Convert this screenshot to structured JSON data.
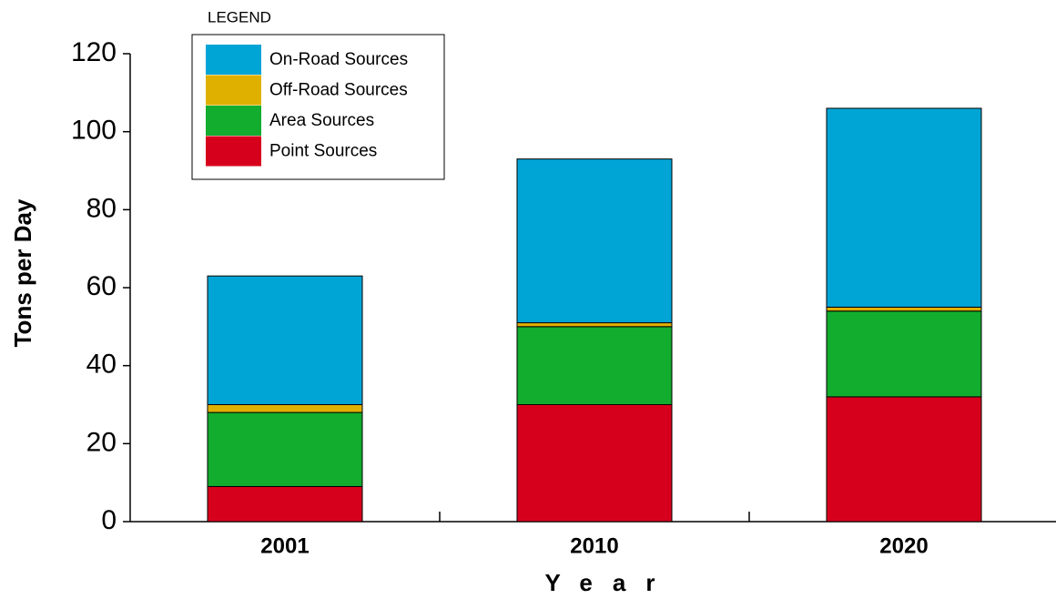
{
  "chart_data": {
    "type": "stacked-bar",
    "y_label": "Tons per Day",
    "x_label": "Year",
    "legend_title": "LEGEND",
    "categories": [
      "2001",
      "2010",
      "2020"
    ],
    "series": [
      {
        "name": "Point Sources",
        "color": "#d7001c",
        "values": [
          9,
          30,
          32
        ]
      },
      {
        "name": "Area Sources",
        "color": "#12ac2e",
        "values": [
          19,
          20,
          22
        ]
      },
      {
        "name": "Off-Road Sources",
        "color": "#e0b000",
        "values": [
          2,
          1,
          1
        ]
      },
      {
        "name": "On-Road Sources",
        "color": "#00a5d6",
        "values": [
          33,
          42,
          51
        ]
      }
    ],
    "ylim": [
      0,
      120
    ],
    "yticks": [
      0,
      20,
      40,
      60,
      80,
      100,
      120
    ],
    "grid": false
  }
}
